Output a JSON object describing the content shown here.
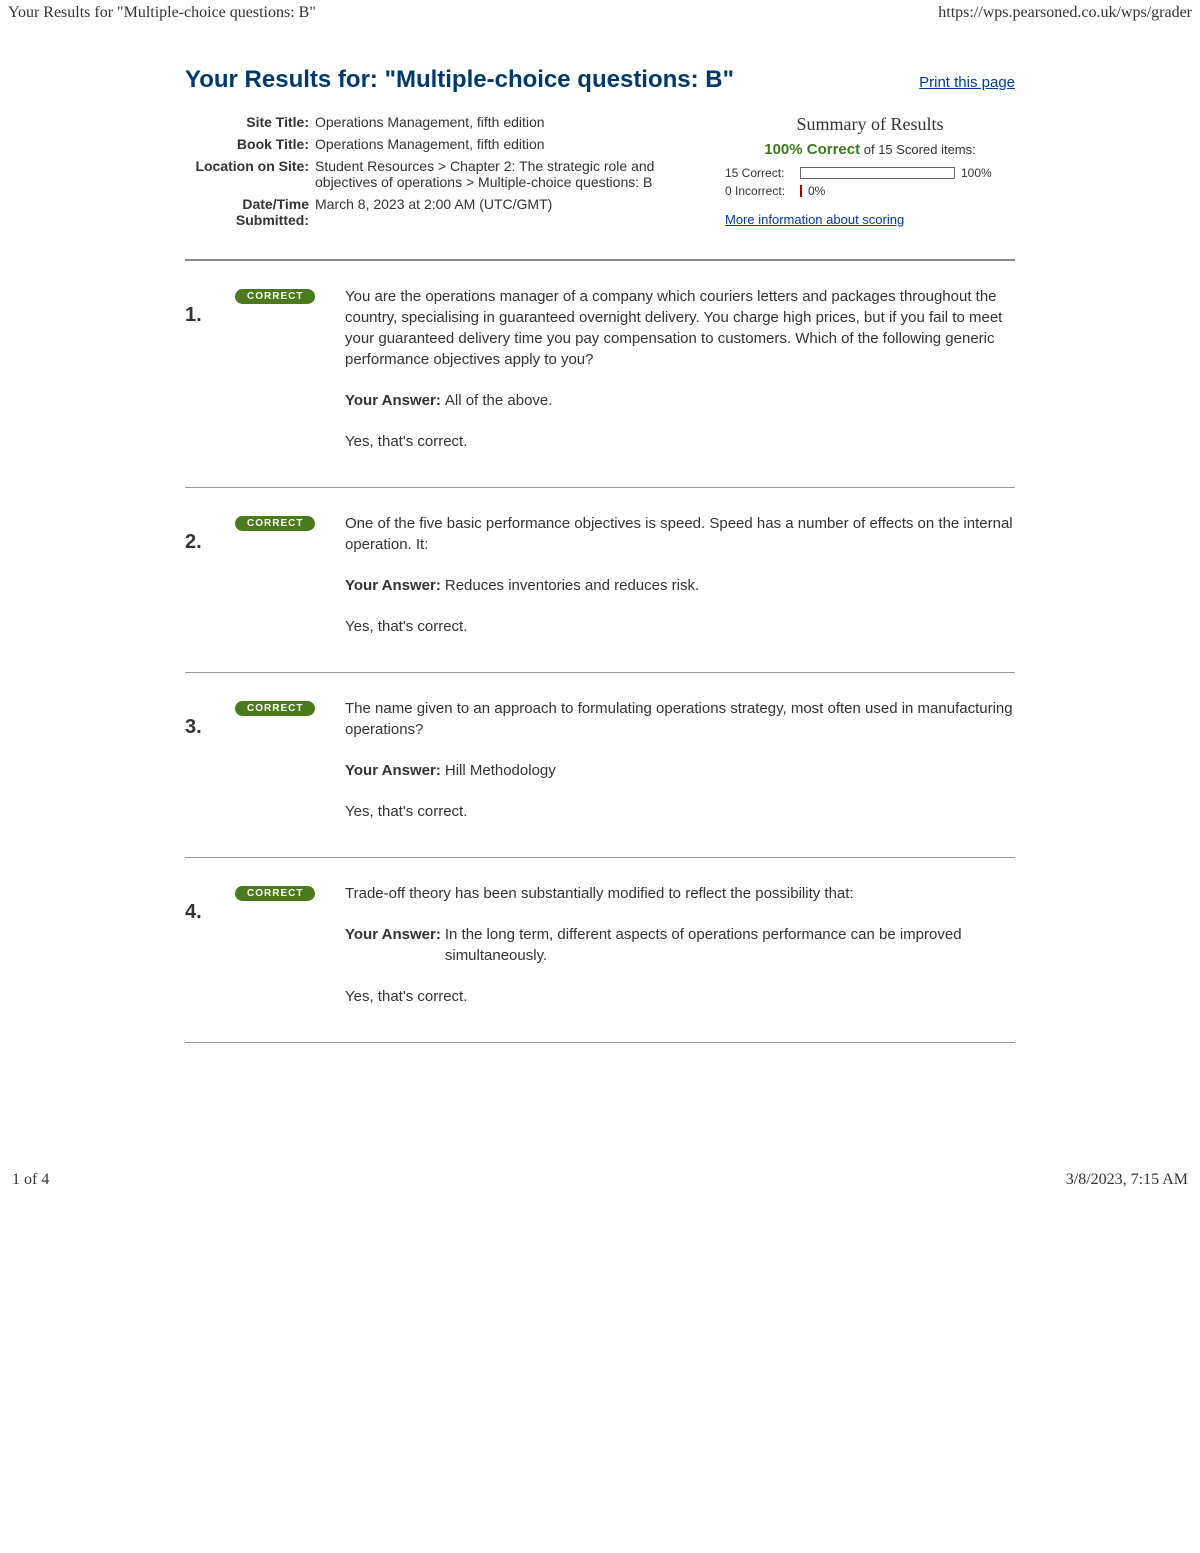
{
  "topbar": {
    "left": "Your Results for \"Multiple-choice questions: B\"",
    "right": "https://wps.pearsoned.co.uk/wps/grader"
  },
  "header": {
    "title": "Your Results for: \"Multiple-choice questions: B\"",
    "print_link": "Print this page"
  },
  "meta": {
    "site_title_label": "Site Title:",
    "site_title": "Operations Management, fifth edition",
    "book_title_label": "Book Title:",
    "book_title": "Operations Management, fifth edition",
    "location_label": "Location on Site:",
    "location": "Student Resources > Chapter 2: The strategic role and objectives of operations > Multiple-choice questions: B",
    "datetime_label": "Date/Time Submitted:",
    "datetime": "March 8, 2023 at 2:00 AM (UTC/GMT)"
  },
  "summary": {
    "title": "Summary of Results",
    "percent": "100% Correct",
    "of_text": " of 15 Scored items:",
    "correct_label": "15 Correct:",
    "correct_pct": "100%",
    "correct_fill": 100,
    "incorrect_label": "0 Incorrect:",
    "incorrect_pct": "0%",
    "incorrect_fill": 0,
    "more_info": "More information about scoring"
  },
  "questions": [
    {
      "num": "1.",
      "badge": "CORRECT",
      "text": "You are the operations manager of a company which couriers letters and packages throughout the country, specialising in guaranteed overnight delivery. You charge high prices, but if you fail to meet your guaranteed delivery time you pay compensation to customers. Which of the following generic performance objectives apply to you?",
      "answer_label": "Your Answer:",
      "answer": "All of the above.",
      "feedback": "Yes, that's correct."
    },
    {
      "num": "2.",
      "badge": "CORRECT",
      "text": "One of the five basic performance objectives is speed. Speed has a number of effects on the internal operation. It:",
      "answer_label": "Your Answer:",
      "answer": "Reduces inventories and reduces risk.",
      "feedback": "Yes, that's correct."
    },
    {
      "num": "3.",
      "badge": "CORRECT",
      "text": "The name given to an approach to formulating operations strategy, most often used in manufacturing operations?",
      "answer_label": "Your Answer:",
      "answer": "Hill Methodology",
      "feedback": "Yes, that's correct."
    },
    {
      "num": "4.",
      "badge": "CORRECT",
      "text": "Trade-off theory has been substantially modified to reflect the possibility that:",
      "answer_label": "Your Answer:",
      "answer": "In the long term, different aspects of operations performance can be improved simultaneously.",
      "feedback": "Yes, that's correct."
    }
  ],
  "footer": {
    "left": "1 of 4",
    "right": "3/8/2023, 7:15 AM"
  }
}
